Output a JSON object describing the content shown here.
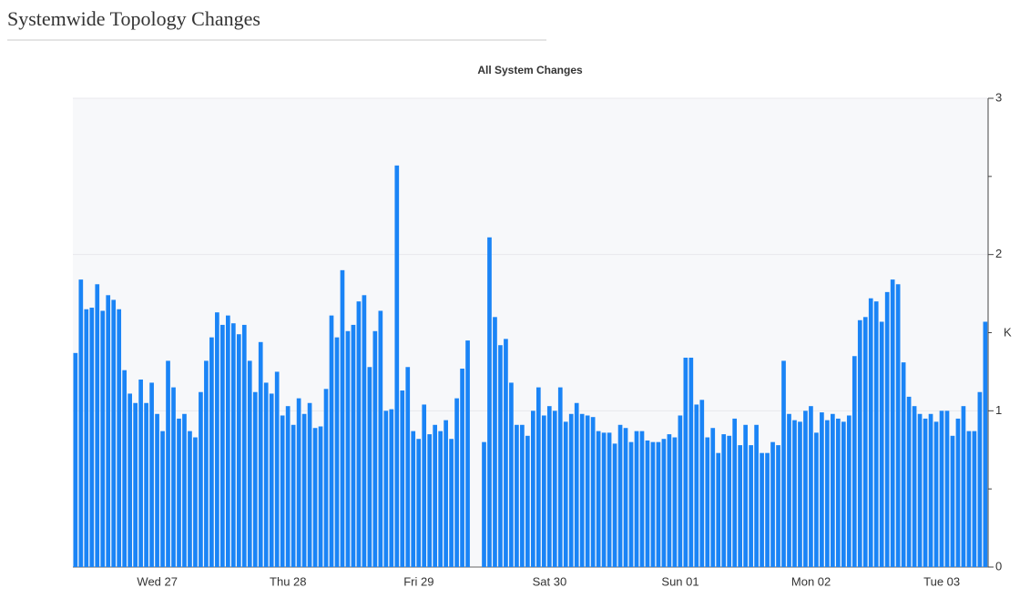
{
  "header": {
    "title": "Systemwide Topology Changes"
  },
  "chart_data": {
    "type": "bar",
    "title": "All System Changes",
    "ylabel": "K",
    "color": "#1a84f6",
    "grid": true,
    "ylim": [
      0,
      3
    ],
    "yticks": [
      0,
      1,
      2,
      3
    ],
    "yminorticks": [
      0.5,
      1.5,
      2.5
    ],
    "categories": [
      null,
      null,
      null,
      null,
      null,
      null,
      null,
      null,
      null,
      null,
      null,
      null,
      null,
      null,
      null,
      "Wed 27",
      null,
      null,
      null,
      null,
      null,
      null,
      null,
      null,
      null,
      null,
      null,
      null,
      null,
      null,
      null,
      null,
      null,
      null,
      null,
      null,
      null,
      null,
      null,
      "Thu 28",
      null,
      null,
      null,
      null,
      null,
      null,
      null,
      null,
      null,
      null,
      null,
      null,
      null,
      null,
      null,
      null,
      null,
      null,
      null,
      null,
      null,
      null,
      null,
      "Fri 29",
      null,
      null,
      null,
      null,
      null,
      null,
      null,
      null,
      null,
      null,
      null,
      null,
      null,
      null,
      null,
      null,
      null,
      null,
      null,
      null,
      null,
      null,
      null,
      "Sat 30",
      null,
      null,
      null,
      null,
      null,
      null,
      null,
      null,
      null,
      null,
      null,
      null,
      null,
      null,
      null,
      null,
      null,
      null,
      null,
      null,
      null,
      null,
      null,
      "Sun 01",
      null,
      null,
      null,
      null,
      null,
      null,
      null,
      null,
      null,
      null,
      null,
      null,
      null,
      null,
      null,
      null,
      null,
      null,
      null,
      null,
      null,
      null,
      null,
      "Mon 02",
      null,
      null,
      null,
      null,
      null,
      null,
      null,
      null,
      null,
      null,
      null,
      null,
      null,
      null,
      null,
      null,
      null,
      null,
      null,
      null,
      null,
      null,
      null,
      "Tue 03",
      null,
      null,
      null,
      null,
      null,
      null,
      null,
      null
    ],
    "values": [
      1.37,
      1.84,
      1.65,
      1.66,
      1.81,
      1.64,
      1.74,
      1.71,
      1.65,
      1.26,
      1.11,
      1.05,
      1.2,
      1.05,
      1.18,
      0.98,
      0.87,
      1.32,
      1.15,
      0.95,
      0.98,
      0.87,
      0.83,
      1.12,
      1.32,
      1.47,
      1.63,
      1.55,
      1.61,
      1.56,
      1.49,
      1.55,
      1.32,
      1.12,
      1.44,
      1.18,
      1.11,
      1.25,
      0.97,
      1.03,
      0.91,
      1.08,
      0.98,
      1.05,
      0.89,
      0.9,
      1.14,
      1.61,
      1.47,
      1.9,
      1.51,
      1.55,
      1.7,
      1.74,
      1.28,
      1.51,
      1.64,
      1.0,
      1.01,
      2.57,
      1.13,
      1.28,
      0.87,
      0.82,
      1.04,
      0.85,
      0.91,
      0.87,
      0.94,
      0.82,
      1.08,
      1.27,
      1.45,
      null,
      null,
      0.8,
      2.11,
      1.6,
      1.42,
      1.46,
      1.18,
      0.91,
      0.91,
      0.84,
      1.0,
      1.15,
      0.97,
      1.03,
      1.0,
      1.15,
      0.93,
      0.98,
      1.05,
      0.98,
      0.97,
      0.96,
      0.87,
      0.86,
      0.86,
      0.79,
      0.91,
      0.89,
      0.8,
      0.87,
      0.87,
      0.81,
      0.8,
      0.8,
      0.82,
      0.85,
      0.83,
      0.97,
      1.34,
      1.34,
      1.04,
      1.07,
      0.83,
      0.89,
      0.73,
      0.85,
      0.84,
      0.95,
      0.78,
      0.91,
      0.78,
      0.91,
      0.73,
      0.73,
      0.8,
      0.78,
      1.32,
      0.98,
      0.94,
      0.93,
      1.0,
      1.03,
      0.86,
      0.99,
      0.94,
      0.98,
      0.95,
      0.93,
      0.97,
      1.35,
      1.58,
      1.6,
      1.72,
      1.7,
      1.57,
      1.76,
      1.84,
      1.81,
      1.31,
      1.09,
      1.03,
      0.98,
      0.95,
      0.98,
      0.93,
      1.0,
      1.0,
      0.84,
      0.95,
      1.03,
      0.87,
      0.87,
      1.12,
      1.57
    ]
  }
}
